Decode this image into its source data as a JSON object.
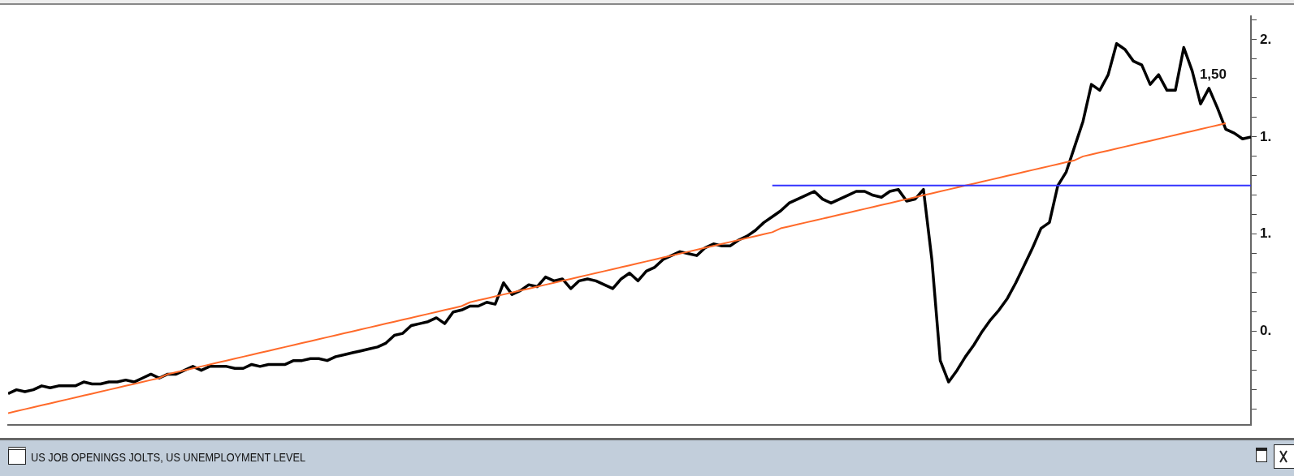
{
  "chart_data": {
    "type": "line",
    "title": "US JOB OPENINGS JOLTS, US UNEMPLOYMENT LEVEL",
    "categories": [
      null,
      null,
      null,
      null,
      null,
      null,
      null,
      null,
      null,
      null,
      null,
      null,
      null,
      null,
      null,
      null,
      null,
      null,
      null,
      null,
      null,
      null,
      null,
      null,
      null,
      null,
      null,
      null,
      null,
      null,
      null,
      null,
      null,
      null,
      null,
      null,
      null,
      null,
      null,
      null,
      null,
      null,
      null,
      null,
      null,
      null,
      null,
      null,
      null,
      null,
      null,
      null,
      null,
      null,
      null,
      null,
      null,
      null,
      null,
      null,
      null,
      null,
      null,
      null,
      null,
      null,
      null,
      null,
      null,
      null,
      null,
      null,
      null,
      null,
      null,
      null,
      null,
      null,
      null,
      null,
      null,
      null,
      null,
      null,
      null,
      null,
      null,
      null,
      null,
      null,
      null,
      null,
      null,
      null,
      null,
      null,
      null,
      null,
      null,
      null,
      null,
      null,
      null,
      null,
      null,
      null,
      null,
      null,
      null,
      null,
      null,
      null,
      null,
      null,
      null,
      null,
      null,
      null,
      null,
      null,
      null,
      null,
      null,
      null,
      null,
      null,
      null,
      null,
      null,
      null,
      null,
      null,
      null,
      null,
      null,
      null,
      null,
      null,
      null,
      null,
      null,
      null,
      null,
      null,
      null,
      null,
      null,
      null,
      null
    ],
    "series": [
      {
        "color": "#000000",
        "values": [
          0.18,
          0.2,
          0.19,
          0.2,
          0.22,
          0.21,
          0.22,
          0.22,
          0.22,
          0.24,
          0.23,
          0.23,
          0.24,
          0.24,
          0.25,
          0.24,
          0.26,
          0.28,
          0.26,
          0.28,
          0.28,
          0.3,
          0.32,
          0.3,
          0.32,
          0.32,
          0.32,
          0.31,
          0.31,
          0.33,
          0.32,
          0.33,
          0.33,
          0.33,
          0.35,
          0.35,
          0.36,
          0.36,
          0.35,
          0.37,
          0.38,
          0.39,
          0.4,
          0.41,
          0.42,
          0.44,
          0.48,
          0.49,
          0.53,
          0.54,
          0.55,
          0.57,
          0.54,
          0.6,
          0.61,
          0.63,
          0.63,
          0.65,
          0.64,
          0.75,
          0.69,
          0.71,
          0.74,
          0.73,
          0.78,
          0.76,
          0.77,
          0.72,
          0.76,
          0.77,
          0.76,
          0.74,
          0.72,
          0.77,
          0.8,
          0.76,
          0.81,
          0.83,
          0.87,
          0.89,
          0.91,
          0.9,
          0.89,
          0.93,
          0.95,
          0.94,
          0.94,
          0.97,
          0.99,
          1.02,
          1.06,
          1.09,
          1.12,
          1.16,
          1.18,
          1.2,
          1.22,
          1.18,
          1.16,
          1.18,
          1.2,
          1.22,
          1.22,
          1.2,
          1.19,
          1.22,
          1.23,
          1.17,
          1.18,
          1.23,
          0.87,
          0.35,
          0.24,
          0.3,
          0.37,
          0.43,
          0.5,
          0.56,
          0.61,
          0.67,
          0.75,
          0.84,
          0.93,
          1.03,
          1.06,
          1.25,
          1.32,
          1.45,
          1.58,
          1.77,
          1.74,
          1.82,
          1.98,
          1.95,
          1.89,
          1.87,
          1.77,
          1.82,
          1.74,
          1.74,
          1.96,
          1.84,
          1.67,
          1.75,
          1.65,
          1.54,
          1.52,
          1.49,
          1.5
        ]
      },
      {
        "type": "line",
        "color": "#ff6a2a",
        "values": [
          0.08,
          0.09,
          0.1,
          0.11,
          0.12,
          0.13,
          0.14,
          0.15,
          0.16,
          0.17,
          0.18,
          0.19,
          0.2,
          0.21,
          0.22,
          0.23,
          0.24,
          0.25,
          0.26,
          0.28,
          0.29,
          0.3,
          0.31,
          0.32,
          0.33,
          0.34,
          0.35,
          0.36,
          0.37,
          0.38,
          0.39,
          0.4,
          0.41,
          0.42,
          0.43,
          0.44,
          0.45,
          0.46,
          0.47,
          0.48,
          0.49,
          0.5,
          0.51,
          0.52,
          0.53,
          0.54,
          0.55,
          0.56,
          0.57,
          0.58,
          0.59,
          0.6,
          0.61,
          0.62,
          0.63,
          0.65,
          0.66,
          0.67,
          0.68,
          0.69,
          0.7,
          0.71,
          0.72,
          0.73,
          0.74,
          0.75,
          0.76,
          0.77,
          0.78,
          0.79,
          0.8,
          0.81,
          0.82,
          0.83,
          0.84,
          0.85,
          0.86,
          0.87,
          0.88,
          0.89,
          0.9,
          0.91,
          0.92,
          0.93,
          0.94,
          0.95,
          0.96,
          0.97,
          0.98,
          0.99,
          1.0,
          1.01,
          1.03,
          1.04,
          1.05,
          1.06,
          1.07,
          1.08,
          1.09,
          1.1,
          1.11,
          1.12,
          1.13,
          1.14,
          1.15,
          1.16,
          1.17,
          1.18,
          1.19,
          1.2,
          1.21,
          1.22,
          1.23,
          1.24,
          1.25,
          1.26,
          1.27,
          1.28,
          1.29,
          1.3,
          1.31,
          1.32,
          1.33,
          1.34,
          1.35,
          1.36,
          1.37,
          1.38,
          1.4,
          1.41,
          1.42,
          1.43,
          1.44,
          1.45,
          1.46,
          1.47,
          1.48,
          1.49,
          1.5,
          1.51,
          1.52,
          1.53,
          1.54,
          1.55,
          1.56,
          1.57,
          null,
          null,
          null
        ]
      },
      {
        "type": "line",
        "color": "#3333ff",
        "values": [
          null,
          null,
          null,
          null,
          null,
          null,
          null,
          null,
          null,
          null,
          null,
          null,
          null,
          null,
          null,
          null,
          null,
          null,
          null,
          null,
          null,
          null,
          null,
          null,
          null,
          null,
          null,
          null,
          null,
          null,
          null,
          null,
          null,
          null,
          null,
          null,
          null,
          null,
          null,
          null,
          null,
          null,
          null,
          null,
          null,
          null,
          null,
          null,
          null,
          null,
          null,
          null,
          null,
          null,
          null,
          null,
          null,
          null,
          null,
          null,
          null,
          null,
          null,
          null,
          null,
          null,
          null,
          null,
          null,
          null,
          null,
          null,
          null,
          null,
          null,
          null,
          null,
          null,
          null,
          null,
          null,
          null,
          null,
          null,
          null,
          null,
          null,
          null,
          null,
          null,
          null,
          1.25,
          1.25,
          1.25,
          1.25,
          1.25,
          1.25,
          1.25,
          1.25,
          1.25,
          1.25,
          1.25,
          1.25,
          1.25,
          1.25,
          1.25,
          1.25,
          1.25,
          1.25,
          1.25,
          1.25,
          1.25,
          1.25,
          1.25,
          1.25,
          1.25,
          1.25,
          1.25,
          1.25,
          1.25,
          1.25,
          1.25,
          1.25,
          1.25,
          1.25,
          1.25,
          1.25,
          1.25,
          1.25,
          1.25,
          1.25,
          1.25,
          1.25,
          1.25,
          1.25,
          1.25,
          1.25,
          1.25,
          1.25,
          1.25,
          1.25,
          1.25,
          1.25,
          1.25,
          1.25,
          1.25,
          1.25,
          1.25,
          1.25
        ]
      }
    ],
    "ylim": [
      0.02,
      2.12
    ],
    "yticks": [
      {
        "value": 0.1,
        "label": null
      },
      {
        "value": 0.2,
        "label": null
      },
      {
        "value": 0.3,
        "label": null
      },
      {
        "value": 0.4,
        "label": null
      },
      {
        "value": 0.5,
        "label": "0."
      },
      {
        "value": 0.6,
        "label": null
      },
      {
        "value": 0.7,
        "label": null
      },
      {
        "value": 0.8,
        "label": null
      },
      {
        "value": 0.9,
        "label": null
      },
      {
        "value": 1.0,
        "label": "1."
      },
      {
        "value": 1.1,
        "label": null
      },
      {
        "value": 1.2,
        "label": null
      },
      {
        "value": 1.3,
        "label": null
      },
      {
        "value": 1.4,
        "label": null
      },
      {
        "value": 1.5,
        "label": "1."
      },
      {
        "value": 1.6,
        "label": null
      },
      {
        "value": 1.7,
        "label": null
      },
      {
        "value": 1.8,
        "label": null
      },
      {
        "value": 1.9,
        "label": null
      },
      {
        "value": 2.0,
        "label": "2."
      },
      {
        "value": 2.1,
        "label": null
      }
    ],
    "tick_labels": "y",
    "annotations": [
      "1,50"
    ]
  }
}
